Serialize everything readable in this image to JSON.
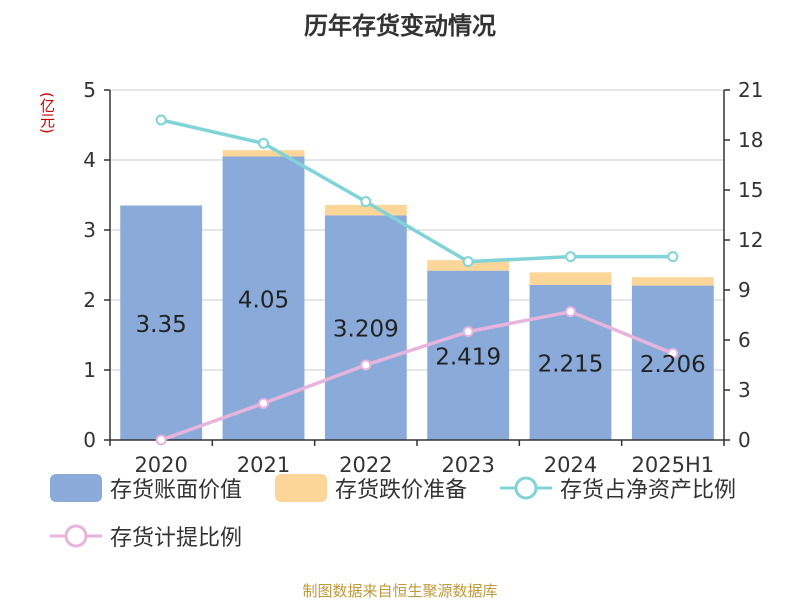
{
  "chart_data": {
    "type": "bar",
    "title": "历年存货变动情况",
    "categories": [
      "2020",
      "2021",
      "2022",
      "2023",
      "2024",
      "2025H1"
    ],
    "stacked": true,
    "y_left": {
      "unit_label": "(亿元)",
      "range": [
        0,
        5
      ],
      "ticks": [
        "0",
        "1",
        "2",
        "3",
        "4",
        "5"
      ]
    },
    "y_right": {
      "range": [
        0,
        21
      ],
      "ticks": [
        "0",
        "3",
        "6",
        "9",
        "12",
        "15",
        "18",
        "21"
      ]
    },
    "grid": true,
    "legend_position": "bottom",
    "series": [
      {
        "name": "存货账面价值",
        "type": "bar",
        "axis": "left",
        "color": "#8aabda",
        "values": [
          3.35,
          4.05,
          3.209,
          2.419,
          2.215,
          2.206
        ],
        "labels": [
          "3.35",
          "4.05",
          "3.209",
          "2.419",
          "2.215",
          "2.206"
        ]
      },
      {
        "name": "存货跌价准备",
        "type": "bar",
        "axis": "left",
        "color": "#fcd699",
        "values": [
          0.0,
          0.09,
          0.15,
          0.15,
          0.18,
          0.12
        ]
      },
      {
        "name": "存货占净资产比例",
        "type": "line",
        "axis": "right",
        "color": "#80d4d8",
        "values": [
          19.2,
          17.8,
          14.3,
          10.7,
          11.0,
          11.0
        ]
      },
      {
        "name": "存货计提比例",
        "type": "line",
        "axis": "right",
        "color": "#e8b4dc",
        "values": [
          0.0,
          2.2,
          4.5,
          6.5,
          7.7,
          5.2
        ]
      }
    ]
  },
  "footer": "制图数据来自恒生聚源数据库"
}
